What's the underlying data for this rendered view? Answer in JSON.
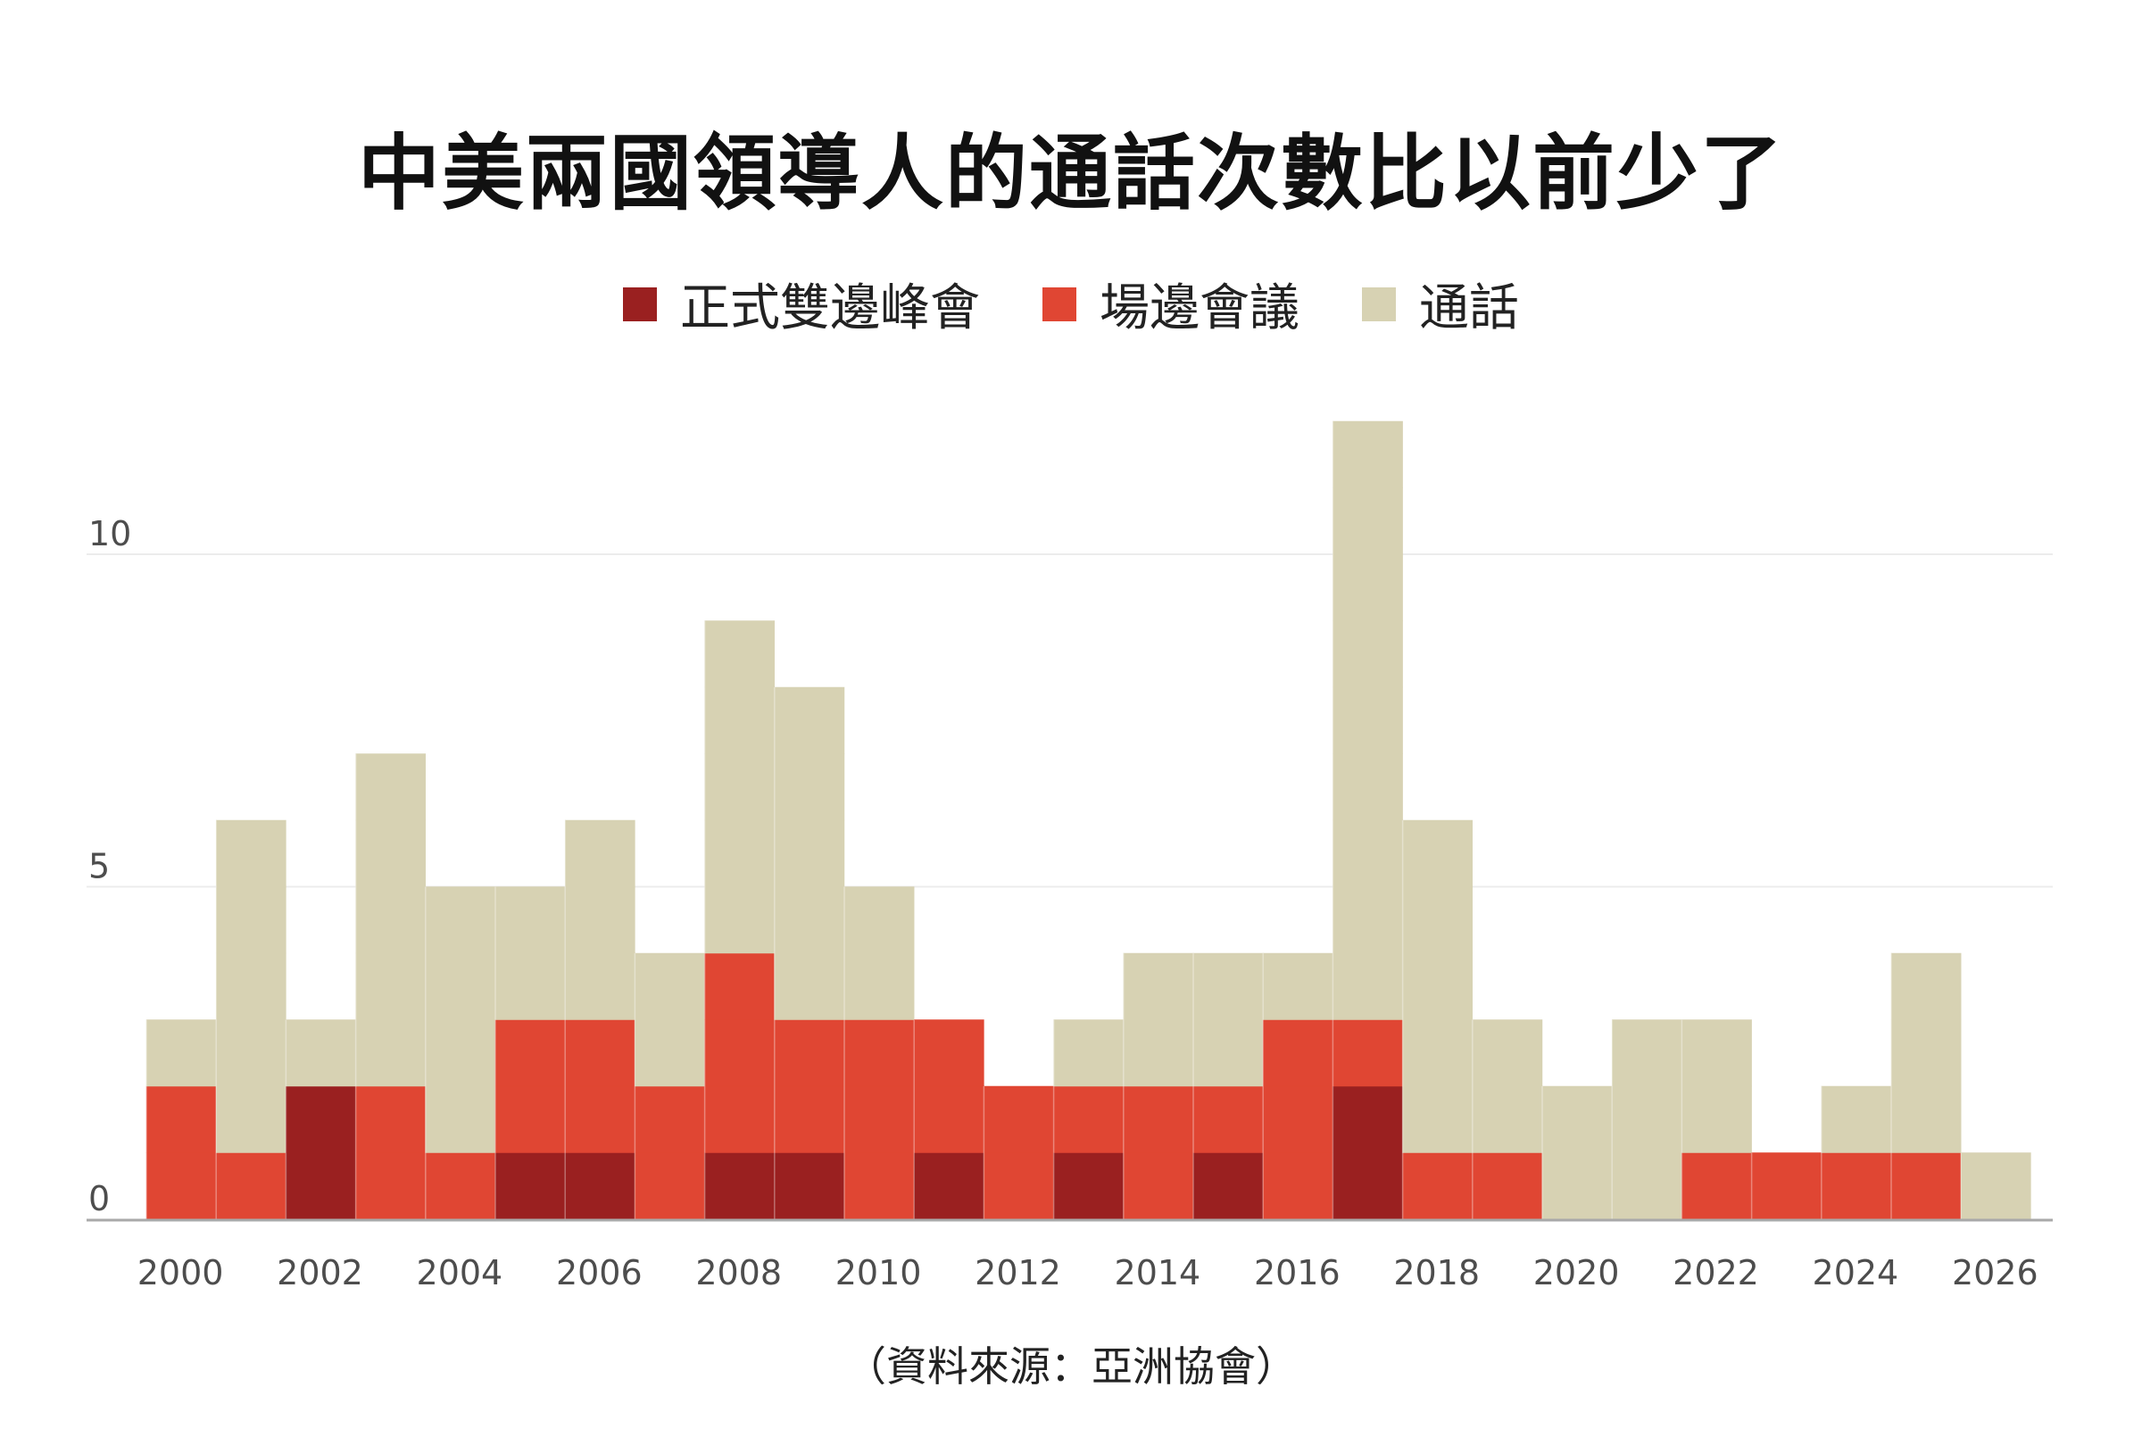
{
  "chart_data": {
    "type": "bar",
    "stacked": true,
    "title": "中美兩國領導人的通話次數比以前少了",
    "source": "（資料來源：亞洲協會）",
    "x": [
      2000,
      2001,
      2002,
      2003,
      2004,
      2005,
      2006,
      2007,
      2008,
      2009,
      2010,
      2011,
      2012,
      2013,
      2014,
      2015,
      2016,
      2017,
      2018,
      2019,
      2020,
      2021,
      2022,
      2023,
      2024,
      2025,
      2026
    ],
    "x_tick_labels": [
      "2000",
      "2002",
      "2004",
      "2006",
      "2008",
      "2010",
      "2012",
      "2014",
      "2016",
      "2018",
      "2020",
      "2022",
      "2024",
      "2026"
    ],
    "y_tick_labels": [
      "0",
      "5",
      "10"
    ],
    "ylim": [
      0,
      12
    ],
    "series": [
      {
        "name": "正式雙邊峰會",
        "color": "#9a2020",
        "values": [
          0,
          0,
          2,
          0,
          0,
          1,
          1,
          0,
          1,
          1,
          0,
          1,
          0,
          1,
          0,
          1,
          0,
          2,
          0,
          0,
          0,
          0,
          0,
          0,
          0,
          0,
          0
        ]
      },
      {
        "name": "場邊會議",
        "color": "#e04633",
        "values": [
          2,
          1,
          0,
          2,
          1,
          2,
          2,
          2,
          3,
          2,
          3,
          2,
          2,
          1,
          2,
          1,
          3,
          1,
          1,
          1,
          0,
          0,
          1,
          1,
          1,
          1,
          0
        ]
      },
      {
        "name": "通話",
        "color": "#d7d2b3",
        "values": [
          1,
          5,
          1,
          5,
          4,
          2,
          3,
          2,
          5,
          5,
          2,
          0,
          0,
          1,
          2,
          2,
          1,
          9,
          5,
          2,
          2,
          3,
          2,
          0,
          1,
          3,
          1
        ]
      }
    ],
    "grid": true,
    "legend_position": "top-center"
  },
  "colors": {
    "axis": "#a9a9a9",
    "gridline": "#ececec",
    "tick_text": "#4d4d4d"
  }
}
